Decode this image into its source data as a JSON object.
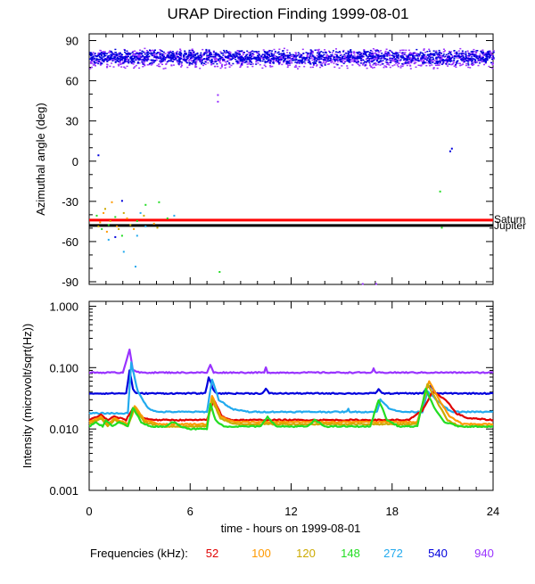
{
  "chart_data": {
    "title": "URAP Direction Finding  1999-08-01",
    "xlabel": "time - hours on 1999-08-01",
    "x_ticks": [
      "0",
      "6",
      "12",
      "18",
      "24"
    ],
    "xlim": [
      0,
      24
    ],
    "legend": {
      "label": "Frequencies (kHz):",
      "items": [
        {
          "name": "52",
          "color": "#e00000"
        },
        {
          "name": "100",
          "color": "#ff9900"
        },
        {
          "name": "120",
          "color": "#ccaa00"
        },
        {
          "name": "148",
          "color": "#22dd22"
        },
        {
          "name": "272",
          "color": "#22aaee"
        },
        {
          "name": "540",
          "color": "#0000dd"
        },
        {
          "name": "940",
          "color": "#9933ff"
        }
      ]
    },
    "panels": [
      {
        "type": "scatter",
        "ylabel": "Azimuthal angle (deg)",
        "ylim": [
          -92,
          95
        ],
        "y_ticks": [
          90,
          60,
          30,
          0,
          -30,
          -60,
          -90
        ],
        "y_tick_labels": [
          "90",
          "60",
          "30",
          "0",
          "-30",
          "-60",
          "-90"
        ],
        "reference_lines": [
          {
            "name": "Saturn",
            "y": -44,
            "color": "#ff0000"
          },
          {
            "name": "Jupiter",
            "y": -48,
            "color": "#000000"
          }
        ],
        "series": [
          {
            "name": "940",
            "color": "#9933ff",
            "band": {
              "x": [
                0,
                24
              ],
              "y_center": 77,
              "y_spread": 8
            }
          },
          {
            "name": "540",
            "color": "#0000dd",
            "band": {
              "x": [
                0,
                24
              ],
              "y_center": 78,
              "y_spread": 6
            }
          },
          {
            "name": "100",
            "color": "#ff9900",
            "points": [
              [
                0.6,
                -45
              ],
              [
                0.8,
                -38
              ],
              [
                1.0,
                -52
              ],
              [
                1.3,
                -30
              ],
              [
                1.6,
                -48
              ],
              [
                2.2,
                -42
              ],
              [
                2.6,
                -50
              ],
              [
                3.8,
                -46
              ]
            ]
          },
          {
            "name": "120",
            "color": "#ccaa00",
            "points": [
              [
                0.5,
                -48
              ],
              [
                0.9,
                -35
              ],
              [
                1.2,
                -44
              ],
              [
                1.7,
                -50
              ],
              [
                2.0,
                -38
              ],
              [
                2.4,
                -47
              ],
              [
                3.2,
                -40
              ],
              [
                4.0,
                -49
              ]
            ]
          },
          {
            "name": "148",
            "color": "#22dd22",
            "points": [
              [
                0.4,
                -40
              ],
              [
                0.7,
                -50
              ],
              [
                1.1,
                -47
              ],
              [
                1.5,
                -41
              ],
              [
                1.9,
                -55
              ],
              [
                2.8,
                -44
              ],
              [
                3.3,
                -32
              ],
              [
                4.1,
                -30
              ],
              [
                4.6,
                -42
              ],
              [
                7.7,
                -82
              ],
              [
                20.8,
                -22
              ],
              [
                20.9,
                -49
              ]
            ]
          },
          {
            "name": "272",
            "color": "#22aaee",
            "points": [
              [
                1.1,
                -58
              ],
              [
                2.0,
                -67
              ],
              [
                2.7,
                -78
              ],
              [
                2.8,
                -55
              ],
              [
                3.0,
                -38
              ],
              [
                3.3,
                -48
              ],
              [
                5.0,
                -40
              ]
            ]
          },
          {
            "name": "540",
            "color": "#0000dd",
            "points": [
              [
                0.5,
                5
              ],
              [
                1.9,
                -29
              ],
              [
                1.5,
                -56
              ],
              [
                21.4,
                8
              ],
              [
                21.5,
                10
              ]
            ]
          },
          {
            "name": "940",
            "color": "#9933ff",
            "points": [
              [
                7.6,
                45
              ],
              [
                7.6,
                50
              ],
              [
                16.2,
                -91
              ],
              [
                17.0,
                -91
              ]
            ]
          }
        ]
      },
      {
        "type": "line",
        "ylabel": "Intensity (microvolt/sqrt(Hz))",
        "yscale": "log",
        "ylim": [
          0.001,
          1.2
        ],
        "y_ticks": [
          1.0,
          0.1,
          0.01,
          0.001
        ],
        "y_tick_labels": [
          "1.000",
          "0.100",
          "0.010",
          "0.001"
        ],
        "series": [
          {
            "name": "940",
            "color": "#9933ff",
            "x": [
              0,
              2,
              2.4,
              2.6,
              3,
              7,
              7.2,
              7.4,
              10.4,
              10.5,
              10.6,
              16.8,
              16.9,
              17,
              24
            ],
            "y": [
              0.083,
              0.083,
              0.2,
              0.09,
              0.083,
              0.083,
              0.11,
              0.083,
              0.083,
              0.1,
              0.083,
              0.083,
              0.095,
              0.083,
              0.083
            ]
          },
          {
            "name": "540",
            "color": "#0000dd",
            "x": [
              0,
              2.2,
              2.4,
              2.6,
              2.8,
              6.9,
              7.1,
              7.4,
              7.6,
              10.3,
              10.5,
              10.7,
              17,
              17.2,
              17.4,
              19.8,
              20.1,
              20.3,
              20.6,
              24
            ],
            "y": [
              0.038,
              0.038,
              0.09,
              0.045,
              0.038,
              0.038,
              0.07,
              0.042,
              0.038,
              0.038,
              0.045,
              0.038,
              0.038,
              0.045,
              0.038,
              0.038,
              0.048,
              0.05,
              0.038,
              0.038
            ]
          },
          {
            "name": "272",
            "color": "#22aaee",
            "x": [
              0,
              2.3,
              2.5,
              2.9,
              3.5,
              4,
              7,
              7.3,
              7.7,
              8.5,
              9.5,
              15.3,
              15.4,
              15.5,
              17.1,
              17.3,
              17.8,
              18.5,
              19.8,
              20.1,
              20.6,
              21.5,
              24
            ],
            "y": [
              0.018,
              0.018,
              0.12,
              0.04,
              0.022,
              0.019,
              0.019,
              0.065,
              0.03,
              0.021,
              0.019,
              0.019,
              0.021,
              0.019,
              0.019,
              0.03,
              0.022,
              0.019,
              0.019,
              0.042,
              0.03,
              0.019,
              0.019
            ]
          },
          {
            "name": "52",
            "color": "#e00000",
            "x": [
              0,
              0.7,
              1.1,
              1.5,
              2.2,
              2.6,
              3.2,
              4,
              7,
              7.4,
              7.9,
              8.5,
              19,
              19.8,
              20.4,
              21.2,
              21.8,
              22.5,
              24
            ],
            "y": [
              0.014,
              0.017,
              0.014,
              0.016,
              0.014,
              0.022,
              0.015,
              0.014,
              0.014,
              0.03,
              0.016,
              0.014,
              0.014,
              0.02,
              0.04,
              0.03,
              0.018,
              0.015,
              0.014
            ]
          },
          {
            "name": "100",
            "color": "#ff9900",
            "x": [
              0,
              0.7,
              1.1,
              1.5,
              2.3,
              2.7,
              3.3,
              4.2,
              7,
              7.3,
              7.8,
              8.6,
              10,
              19.5,
              20.2,
              20.8,
              21.4,
              22.2,
              24
            ],
            "y": [
              0.013,
              0.016,
              0.012,
              0.015,
              0.012,
              0.024,
              0.014,
              0.012,
              0.012,
              0.035,
              0.016,
              0.013,
              0.013,
              0.013,
              0.06,
              0.03,
              0.016,
              0.012,
              0.012
            ]
          },
          {
            "name": "120",
            "color": "#ccaa00",
            "x": [
              0,
              0.7,
              1.1,
              1.5,
              2.3,
              2.7,
              3.3,
              4.2,
              7,
              7.3,
              7.8,
              8.6,
              10,
              19.5,
              20.1,
              20.7,
              21.3,
              22,
              24
            ],
            "y": [
              0.012,
              0.015,
              0.011,
              0.014,
              0.011,
              0.022,
              0.013,
              0.011,
              0.011,
              0.03,
              0.015,
              0.012,
              0.012,
              0.012,
              0.055,
              0.027,
              0.014,
              0.011,
              0.011
            ]
          },
          {
            "name": "148",
            "color": "#22dd22",
            "x": [
              0,
              0.4,
              0.8,
              1.0,
              1.4,
              1.8,
              2.3,
              2.6,
              3.1,
              3.6,
              4.5,
              5.0,
              5.5,
              6,
              7.0,
              7.2,
              7.5,
              8,
              9,
              10.2,
              10.6,
              11.1,
              12,
              13.0,
              13.4,
              14,
              15.5,
              16.7,
              17.2,
              17.7,
              18.4,
              19.5,
              20.0,
              20.5,
              21.1,
              22,
              23,
              24
            ],
            "y": [
              0.011,
              0.013,
              0.011,
              0.014,
              0.011,
              0.013,
              0.011,
              0.022,
              0.013,
              0.011,
              0.011,
              0.013,
              0.011,
              0.01,
              0.01,
              0.026,
              0.014,
              0.011,
              0.011,
              0.011,
              0.016,
              0.011,
              0.011,
              0.011,
              0.014,
              0.011,
              0.011,
              0.011,
              0.03,
              0.014,
              0.011,
              0.011,
              0.045,
              0.022,
              0.013,
              0.011,
              0.011,
              0.011
            ]
          }
        ]
      }
    ]
  }
}
